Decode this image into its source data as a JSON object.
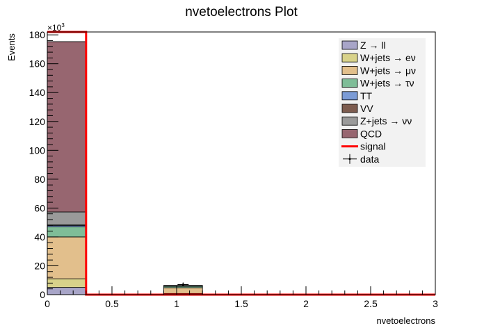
{
  "chart_data": {
    "type": "bar",
    "title": "nvetoelectrons Plot",
    "xlabel": "nvetoelectrons",
    "ylabel": "Events",
    "y_multiplier": "×10",
    "y_multiplier_exp": "3",
    "xlim": [
      0,
      3
    ],
    "ylim": [
      0,
      182
    ],
    "x_ticks": [
      "0",
      "0.5",
      "1",
      "1.5",
      "2",
      "2.5",
      "3"
    ],
    "y_ticks": [
      "0",
      "20",
      "40",
      "60",
      "80",
      "100",
      "120",
      "140",
      "160",
      "180"
    ],
    "bin_edges": [
      [
        0,
        0.3
      ],
      [
        0.9,
        1.2
      ]
    ],
    "legend_position": "top-right",
    "series": [
      {
        "name": "Z → ll",
        "color": "#a8a5c8",
        "values": [
          5,
          0.3
        ]
      },
      {
        "name": "W+jets → eν",
        "color": "#d8d28a",
        "values": [
          6,
          0.5
        ]
      },
      {
        "name": "W+jets → μν",
        "color": "#e2bf8c",
        "values": [
          29,
          4
        ]
      },
      {
        "name": "W+jets → τν",
        "color": "#7fbd98",
        "values": [
          7,
          1
        ]
      },
      {
        "name": "TT",
        "color": "#7b9bd6",
        "values": [
          1,
          0.2
        ]
      },
      {
        "name": "VV",
        "color": "#7d5c4f",
        "values": [
          0.3,
          0
        ]
      },
      {
        "name": "Z+jets → νν",
        "color": "#9a9a9a",
        "values": [
          9,
          0.4
        ]
      },
      {
        "name": "QCD",
        "color": "#976670",
        "values": [
          118,
          0
        ]
      }
    ],
    "signal": {
      "name": "signal",
      "color": "#ff0000",
      "x_edge": 0.3,
      "value": 182
    },
    "data": {
      "name": "data",
      "points": [
        {
          "x": 1.05,
          "y": 7
        }
      ]
    }
  }
}
